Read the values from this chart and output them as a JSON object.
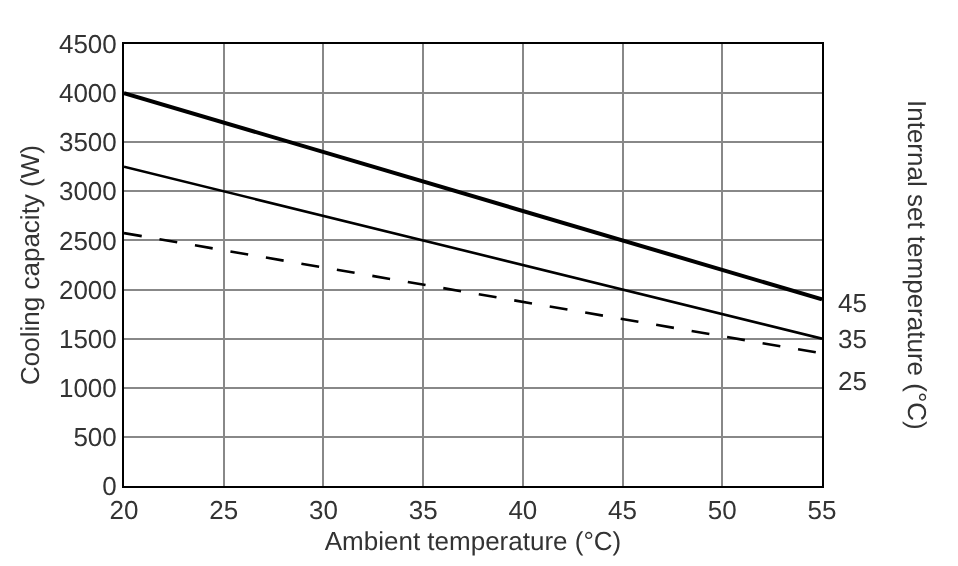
{
  "chart_data": {
    "type": "line",
    "xlabel": "Ambient temperature (°C)",
    "ylabel": "Cooling capacity (W)",
    "y2label": "Internal set temperature (°C)",
    "x": [
      20,
      55
    ],
    "series": [
      {
        "name": "45",
        "color": "#000000",
        "values": [
          4000,
          1900
        ]
      },
      {
        "name": "35",
        "color": "#000000",
        "values": [
          3250,
          1500
        ]
      },
      {
        "name": "25",
        "color": "#000000",
        "values": [
          2575,
          1350
        ],
        "line_style": "dashed"
      }
    ],
    "xlim": [
      20,
      55
    ],
    "xticks": [
      20,
      25,
      30,
      35,
      40,
      45,
      50,
      55
    ],
    "ylim": [
      0,
      4500
    ],
    "yticks": [
      0,
      500,
      1000,
      1500,
      2000,
      2500,
      3000,
      3500,
      4000,
      4500
    ],
    "grid": true,
    "legend": false
  }
}
